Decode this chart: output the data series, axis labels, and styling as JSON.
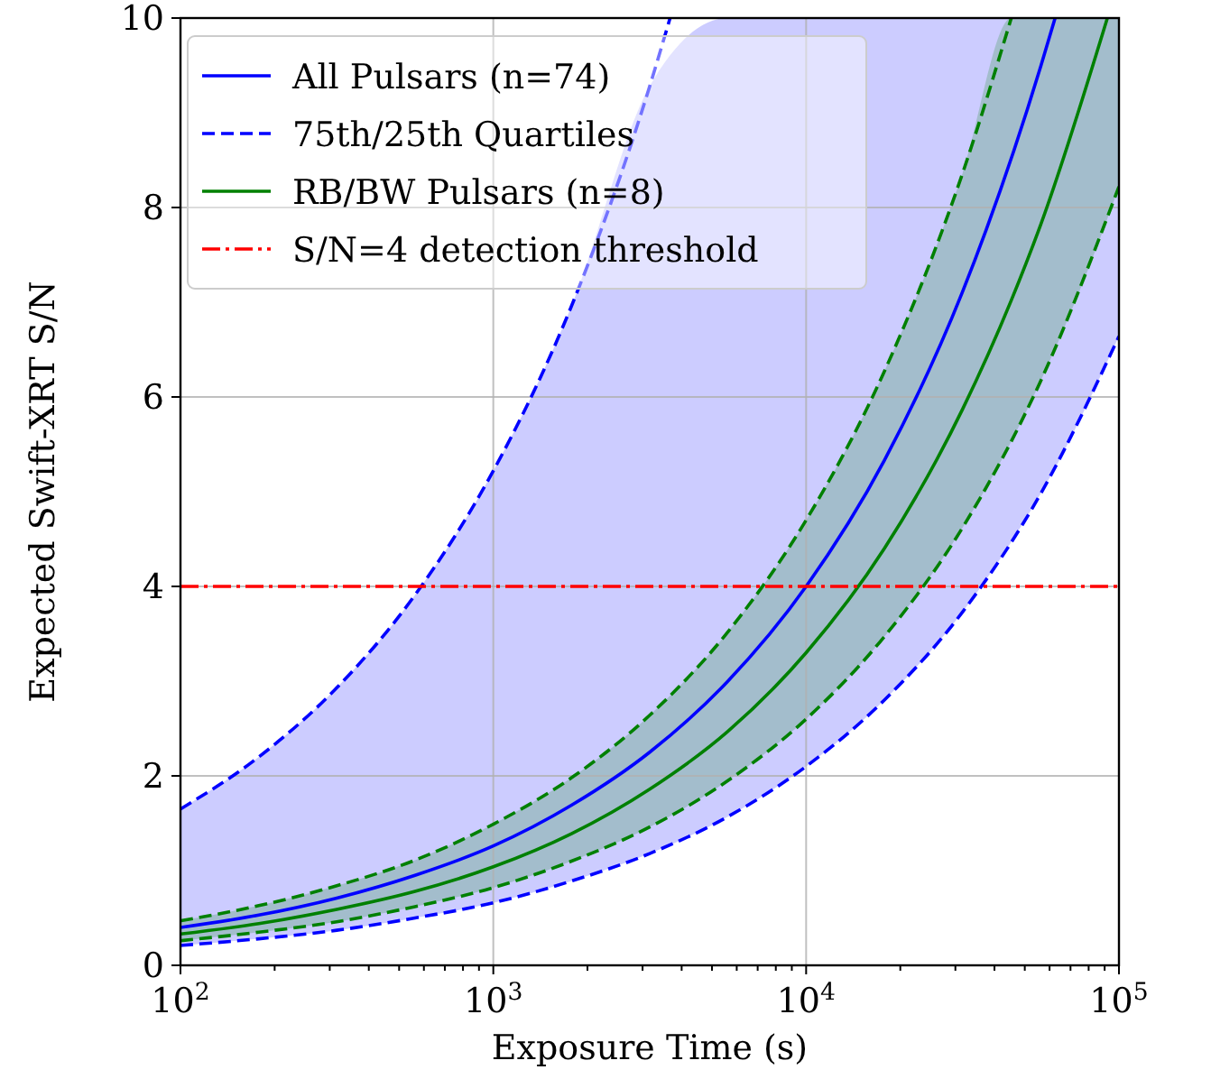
{
  "chart_data": {
    "type": "line",
    "xlabel": "Exposure Time (s)",
    "ylabel": "Expected Swift-XRT S/N",
    "log": "x",
    "grid": true,
    "legend": "top left",
    "xlim": [
      100,
      100000
    ],
    "ylim": [
      0,
      10
    ],
    "xticks": [
      {
        "value": 100,
        "label": "10$^{2}$"
      },
      {
        "value": 200,
        "label": null
      },
      {
        "value": 300,
        "label": null
      },
      {
        "value": 400,
        "label": null
      },
      {
        "value": 500,
        "label": null
      },
      {
        "value": 600,
        "label": null
      },
      {
        "value": 700,
        "label": null
      },
      {
        "value": 800,
        "label": null
      },
      {
        "value": 900,
        "label": null
      },
      {
        "value": 1000,
        "label": "10$^{3}$"
      },
      {
        "value": 2000,
        "label": null
      },
      {
        "value": 3000,
        "label": null
      },
      {
        "value": 4000,
        "label": null
      },
      {
        "value": 5000,
        "label": null
      },
      {
        "value": 6000,
        "label": null
      },
      {
        "value": 7000,
        "label": null
      },
      {
        "value": 8000,
        "label": null
      },
      {
        "value": 9000,
        "label": null
      },
      {
        "value": 10000,
        "label": "10$^{4}$"
      },
      {
        "value": 20000,
        "label": null
      },
      {
        "value": 30000,
        "label": null
      },
      {
        "value": 40000,
        "label": null
      },
      {
        "value": 50000,
        "label": null
      },
      {
        "value": 60000,
        "label": null
      },
      {
        "value": 70000,
        "label": null
      },
      {
        "value": 80000,
        "label": null
      },
      {
        "value": 90000,
        "label": null
      },
      {
        "value": 100000,
        "label": "10$^{5}$"
      }
    ],
    "yticks": [
      0,
      2,
      4,
      6,
      8,
      10
    ],
    "series": [
      {
        "name": "All Pulsars (n=74)",
        "color": "#0000ff",
        "line_style": "solid",
        "x": [
          100,
          178,
          316,
          562,
          1000,
          1778,
          3162,
          5623,
          10000,
          17783,
          31623,
          56234,
          62500,
          100000
        ],
        "values": [
          0.4,
          0.53,
          0.71,
          0.95,
          1.26,
          1.69,
          2.25,
          3.0,
          4.0,
          5.33,
          7.11,
          9.49,
          10,
          null
        ],
        "lower": [
          0.21,
          0.28,
          0.37,
          0.5,
          0.66,
          0.89,
          1.18,
          1.57,
          2.1,
          2.8,
          3.73,
          4.98,
          5.25,
          6.64
        ],
        "upper": [
          1.65,
          2.2,
          2.93,
          3.91,
          5.22,
          6.96,
          9.28,
          10,
          10,
          10,
          10,
          10,
          10,
          10
        ]
      },
      {
        "name": "75th/25th Quartiles",
        "color": "#0000ff",
        "line_style": "dashed",
        "x": [
          100,
          178,
          316,
          562,
          1000,
          1778,
          3162,
          3673
        ],
        "values": [
          1.65,
          2.2,
          2.93,
          3.91,
          5.22,
          6.96,
          9.28,
          10
        ]
      },
      {
        "color": "#0000ff",
        "line_style": "dashed",
        "x": [
          100,
          178,
          316,
          562,
          1000,
          1778,
          3162,
          5623,
          10000,
          17783,
          31623,
          56234,
          100000
        ],
        "values": [
          0.21,
          0.28,
          0.37,
          0.5,
          0.66,
          0.89,
          1.18,
          1.57,
          2.1,
          2.8,
          3.73,
          4.98,
          6.64
        ]
      },
      {
        "name": "RB/BW Pulsars (n=8)",
        "color": "#008000",
        "line_style": "solid",
        "x": [
          100,
          178,
          316,
          562,
          1000,
          1778,
          3162,
          5623,
          10000,
          17783,
          31623,
          45270,
          56234,
          91827,
          100000
        ],
        "values": [
          0.33,
          0.44,
          0.59,
          0.78,
          1.04,
          1.39,
          1.86,
          2.47,
          3.3,
          4.4,
          5.87,
          7.02,
          7.82,
          10,
          null
        ],
        "lower": [
          0.26,
          0.35,
          0.46,
          0.62,
          0.82,
          1.1,
          1.46,
          1.95,
          2.6,
          3.47,
          4.62,
          5.53,
          6.17,
          7.88,
          8.22
        ],
        "upper": [
          0.47,
          0.63,
          0.84,
          1.11,
          1.49,
          1.98,
          2.64,
          3.52,
          4.7,
          6.27,
          8.36,
          10,
          10,
          10,
          10
        ]
      },
      {
        "color": "#008000",
        "line_style": "dashed",
        "x": [
          100,
          178,
          316,
          562,
          1000,
          1778,
          3162,
          5623,
          10000,
          17783,
          31623,
          45270
        ],
        "values": [
          0.47,
          0.63,
          0.84,
          1.11,
          1.49,
          1.98,
          2.64,
          3.52,
          4.7,
          6.27,
          8.36,
          10
        ]
      },
      {
        "color": "#008000",
        "line_style": "dashed",
        "x": [
          100,
          178,
          316,
          562,
          1000,
          1778,
          3162,
          5623,
          10000,
          17783,
          31623,
          56234,
          100000
        ],
        "values": [
          0.26,
          0.35,
          0.46,
          0.62,
          0.82,
          1.1,
          1.46,
          1.95,
          2.6,
          3.47,
          4.62,
          6.17,
          8.22
        ]
      }
    ],
    "ref_lines": [
      {
        "axis": "y",
        "value": 4,
        "label": "S/N=4 detection threshold",
        "color": "#ff0000",
        "line_style": "dashdot"
      }
    ]
  }
}
